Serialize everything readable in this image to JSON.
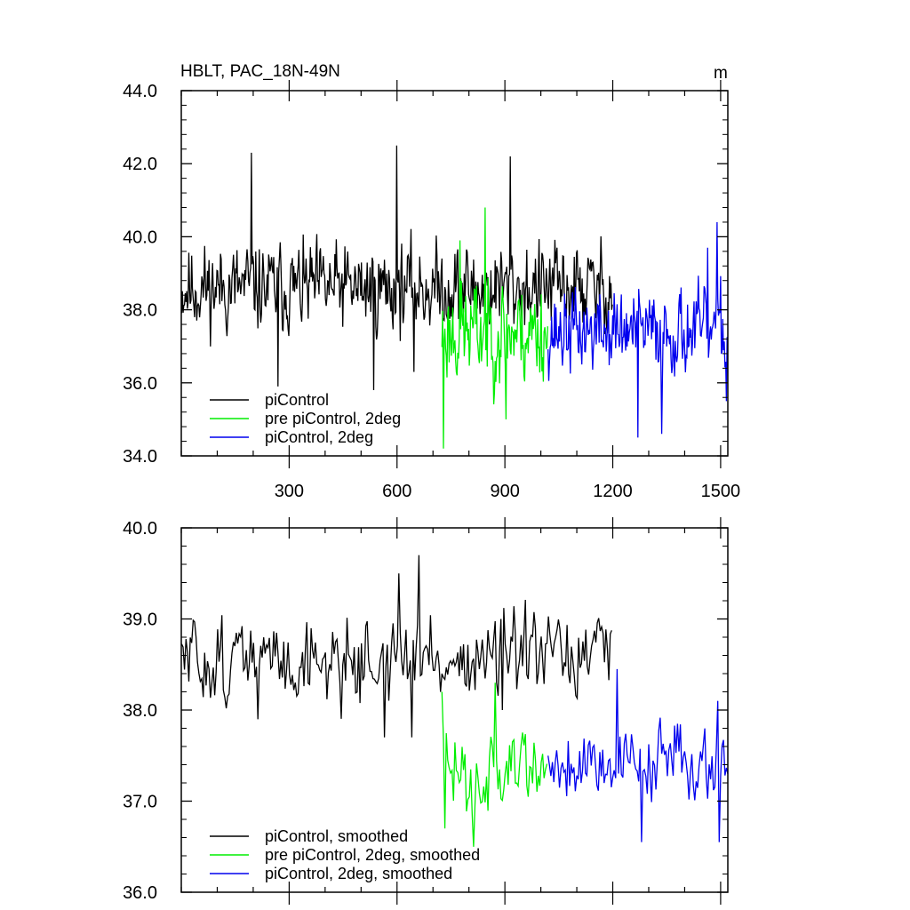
{
  "title": "HBLT, PAC_18N-49N",
  "units": "m",
  "colors": {
    "black": "#000000",
    "green": "#00ee00",
    "blue": "#0000ee"
  },
  "chart_data": [
    {
      "type": "line",
      "name": "top",
      "xlim": [
        0,
        1520
      ],
      "ylim": [
        34.0,
        44.0
      ],
      "xticks": [
        300,
        600,
        900,
        1200,
        1500
      ],
      "xtick_labels": [
        "300",
        "600",
        "900",
        "1200",
        "1500"
      ],
      "yticks": [
        34,
        36,
        38,
        40,
        42,
        44
      ],
      "ytick_labels": [
        "34.0",
        "36.0",
        "38.0",
        "40.0",
        "42.0",
        "44.0"
      ],
      "legend_position": "bottom-left",
      "series": [
        {
          "name": "piControl",
          "color": "#000000",
          "x_start": 1,
          "x_end": 1200,
          "step": 2,
          "mean": 38.6,
          "amp": 1.05,
          "seed": 11,
          "spikes": [
            [
              196,
              42.3
            ],
            [
              600,
              42.5
            ],
            [
              916,
              42.2
            ],
            [
              270,
              35.9
            ],
            [
              535,
              35.8
            ],
            [
              648,
              36.3
            ]
          ]
        },
        {
          "name": "pre piControl, 2deg",
          "color": "#00ee00",
          "x_start": 725,
          "x_end": 1020,
          "step": 2,
          "mean": 37.4,
          "amp": 1.25,
          "seed": 23,
          "spikes": [
            [
              730,
              34.2
            ],
            [
              845,
              40.8
            ],
            [
              775,
              39.9
            ],
            [
              903,
              35.0
            ]
          ]
        },
        {
          "name": "piControl, 2deg",
          "color": "#0000ee",
          "x_start": 1020,
          "x_end": 1520,
          "step": 2,
          "mean": 37.4,
          "amp": 1.0,
          "seed": 37,
          "spikes": [
            [
              1270,
              34.5
            ],
            [
              1335,
              34.6
            ],
            [
              1490,
              40.4
            ],
            [
              1463,
              39.7
            ],
            [
              1515,
              35.5
            ]
          ]
        }
      ]
    },
    {
      "type": "line",
      "name": "bottom",
      "xlim": [
        0,
        1520
      ],
      "ylim": [
        36.0,
        40.0
      ],
      "xticks": [
        300,
        600,
        900,
        1200,
        1500
      ],
      "xtick_labels": [],
      "yticks": [
        36,
        37,
        38,
        39,
        40
      ],
      "ytick_labels": [
        "36.0",
        "37.0",
        "38.0",
        "39.0",
        "40.0"
      ],
      "legend_position": "bottom-left",
      "series": [
        {
          "name": "piControl, smoothed",
          "color": "#000000",
          "x_start": 1,
          "x_end": 1200,
          "step": 4,
          "mean": 38.55,
          "amp": 0.42,
          "seed": 51,
          "spikes": [
            [
              660,
              39.7
            ],
            [
              605,
              39.5
            ],
            [
              640,
              37.7
            ],
            [
              565,
              37.7
            ],
            [
              210,
              37.9
            ],
            [
              890,
              38.0
            ]
          ]
        },
        {
          "name": "pre piControl, 2deg, smoothed",
          "color": "#00ee00",
          "x_start": 725,
          "x_end": 1020,
          "step": 4,
          "mean": 37.35,
          "amp": 0.45,
          "seed": 63,
          "spikes": [
            [
              730,
              36.7
            ],
            [
              725,
              38.2
            ],
            [
              810,
              36.5
            ],
            [
              870,
              38.3
            ],
            [
              940,
              37.4
            ]
          ]
        },
        {
          "name": "piControl, 2deg, smoothed",
          "color": "#0000ee",
          "x_start": 1020,
          "x_end": 1520,
          "step": 4,
          "mean": 37.45,
          "amp": 0.38,
          "seed": 79,
          "spikes": [
            [
              1210,
              38.45
            ],
            [
              1280,
              36.55
            ],
            [
              1495,
              36.55
            ],
            [
              1490,
              38.1
            ],
            [
              1520,
              37.3
            ]
          ]
        }
      ]
    }
  ]
}
